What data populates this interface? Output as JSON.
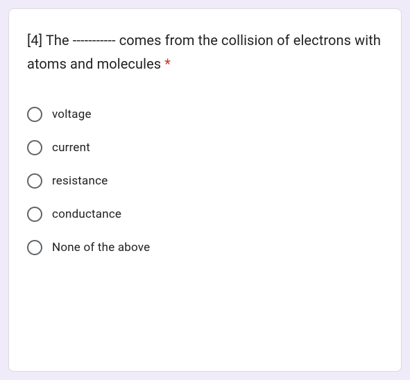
{
  "question": {
    "text": "[4] The ----------- comes from the collision of electrons with atoms and molecules ",
    "required_marker": "*"
  },
  "options": [
    {
      "label": "voltage"
    },
    {
      "label": "current"
    },
    {
      "label": "resistance"
    },
    {
      "label": "conductance"
    },
    {
      "label": "None of the above"
    }
  ],
  "colors": {
    "background": "#f0ebf8",
    "card_background": "#ffffff",
    "card_border": "#dadce0",
    "text": "#202124",
    "required": "#d93025",
    "radio_border": "#5f6368"
  }
}
